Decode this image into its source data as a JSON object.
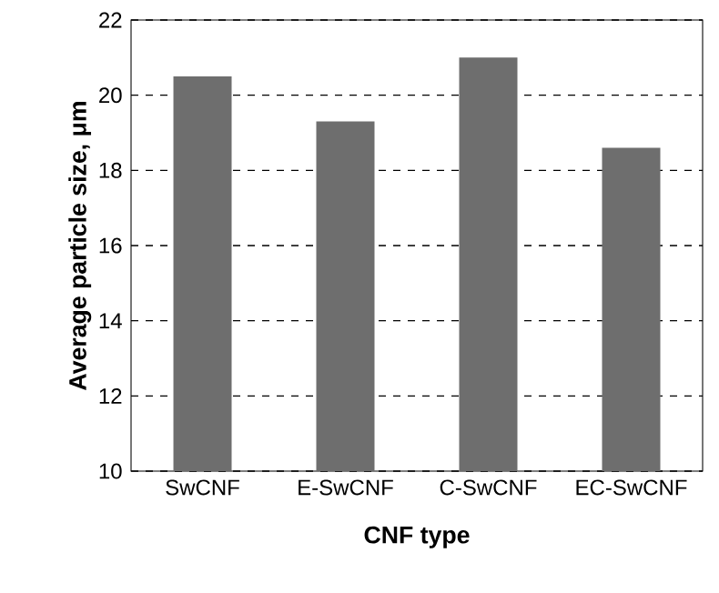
{
  "chart_data": {
    "type": "bar",
    "xlabel": "CNF type",
    "ylabel": "Average particle size, μm",
    "categories": [
      "SwCNF",
      "E-SwCNF",
      "C-SwCNF",
      "EC-SwCNF"
    ],
    "values": [
      20.5,
      19.3,
      21.0,
      18.6
    ],
    "color": "#6e6e6e",
    "ylim": [
      10,
      22
    ],
    "yticks": [
      10,
      12,
      14,
      16,
      18,
      20,
      22
    ],
    "grid": "y"
  }
}
